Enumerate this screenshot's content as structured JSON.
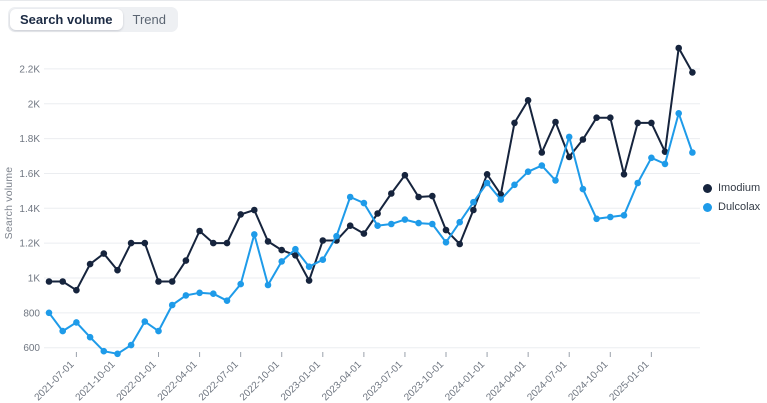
{
  "tabs": {
    "items": [
      {
        "label": "Search volume",
        "active": true
      },
      {
        "label": "Trend",
        "active": false
      }
    ]
  },
  "legend": {
    "items": [
      {
        "label": "Imodium",
        "color": "#16243d"
      },
      {
        "label": "Dulcolax",
        "color": "#1e9be9"
      }
    ]
  },
  "chart_data": {
    "type": "line",
    "title": "",
    "xlabel": "",
    "ylabel": "Search volume",
    "grid": true,
    "legend_position": "right",
    "ylim": [
      600,
      2200
    ],
    "y_ticks": [
      {
        "label": "600",
        "value": 600
      },
      {
        "label": "800",
        "value": 800
      },
      {
        "label": "1K",
        "value": 1000
      },
      {
        "label": "1.2K",
        "value": 1200
      },
      {
        "label": "1.4K",
        "value": 1400
      },
      {
        "label": "1.6K",
        "value": 1600
      },
      {
        "label": "1.8K",
        "value": 1800
      },
      {
        "label": "2K",
        "value": 2000
      },
      {
        "label": "2.2K",
        "value": 2200
      }
    ],
    "x": [
      "2021-05",
      "2021-06",
      "2021-07",
      "2021-08",
      "2021-09",
      "2021-10",
      "2021-11",
      "2021-12",
      "2022-01",
      "2022-02",
      "2022-03",
      "2022-04",
      "2022-05",
      "2022-06",
      "2022-07",
      "2022-08",
      "2022-09",
      "2022-10",
      "2022-11",
      "2022-12",
      "2023-01",
      "2023-02",
      "2023-03",
      "2023-04",
      "2023-05",
      "2023-06",
      "2023-07",
      "2023-08",
      "2023-09",
      "2023-10",
      "2023-11",
      "2023-12",
      "2024-01",
      "2024-02",
      "2024-03",
      "2024-04",
      "2024-05",
      "2024-06",
      "2024-07",
      "2024-08",
      "2024-09",
      "2024-10",
      "2024-11",
      "2024-12",
      "2025-01",
      "2025-02",
      "2025-03",
      "2025-04"
    ],
    "x_tick_labels": [
      "2021-07-01",
      "2021-10-01",
      "2022-01-01",
      "2022-04-01",
      "2022-07-01",
      "2022-10-01",
      "2023-01-01",
      "2023-04-01",
      "2023-07-01",
      "2023-10-01",
      "2024-01-01",
      "2024-04-01",
      "2024-07-01",
      "2024-10-01",
      "2025-01-01"
    ],
    "x_tick_indices": [
      2,
      5,
      8,
      11,
      14,
      17,
      20,
      23,
      26,
      29,
      32,
      35,
      38,
      41,
      44
    ],
    "series": [
      {
        "name": "Imodium",
        "color": "#16243d",
        "values": [
          980,
          980,
          930,
          1080,
          1140,
          1045,
          1200,
          1200,
          980,
          980,
          1100,
          1270,
          1200,
          1200,
          1365,
          1390,
          1210,
          1160,
          1130,
          985,
          1215,
          1215,
          1300,
          1255,
          1370,
          1485,
          1590,
          1465,
          1470,
          1275,
          1195,
          1390,
          1595,
          1480,
          1890,
          2020,
          1720,
          1895,
          1695,
          1795,
          1920,
          1920,
          1595,
          1890,
          1890,
          1725,
          2320,
          2180
        ]
      },
      {
        "name": "Dulcolax",
        "color": "#1e9be9",
        "values": [
          800,
          695,
          745,
          660,
          580,
          565,
          615,
          750,
          695,
          845,
          900,
          915,
          910,
          870,
          965,
          1250,
          960,
          1095,
          1165,
          1065,
          1105,
          1240,
          1465,
          1430,
          1300,
          1310,
          1335,
          1315,
          1310,
          1205,
          1320,
          1435,
          1545,
          1450,
          1535,
          1610,
          1645,
          1560,
          1810,
          1510,
          1340,
          1350,
          1360,
          1545,
          1690,
          1655,
          1945,
          1720
        ]
      }
    ],
    "colors": {
      "gridline": "#ebedf0",
      "axis_text": "#6f7681",
      "tick_mark": "#9aa1ab"
    }
  }
}
